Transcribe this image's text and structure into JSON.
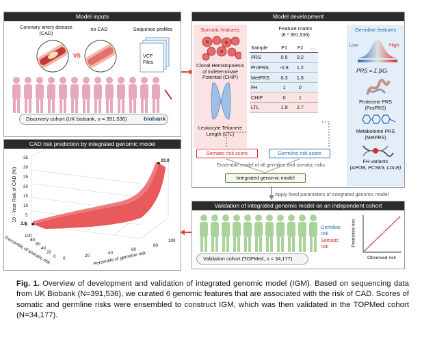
{
  "figure": {
    "model_inputs": {
      "title": "Model inputs",
      "cad_label": "Coronary artery disease\n(CAD)",
      "vs": "VS",
      "no_cad_label": "no CAD",
      "sequence_profiles": "Sequence profiles",
      "vcf_files": "VCF\nFiles",
      "discovery_prefix": "Discovery cohort (UK biobank, ",
      "discovery_n": "n",
      "discovery_suffix": " = 391,536)",
      "biobank_logo": "biobank"
    },
    "model_development": {
      "title": "Model development",
      "somatic_title": "Somatic features",
      "chip_label": "Clonal Hematopoiesis\nof Indeterminate\nPotential (CHIP)",
      "ltl_label": "Leukocyte Telomere\nLength (LTL)",
      "matrix_title": "Feature matrix",
      "matrix_dims": "(6 * 391,536)",
      "matrix_columns": [
        "Sample",
        "P1",
        "P2",
        "..."
      ],
      "matrix_rows": [
        {
          "label": "PRS",
          "p1": "0.5",
          "p2": "0.2",
          "group": "germline"
        },
        {
          "label": "ProPRS",
          "p1": "-0.8",
          "p2": "1.2",
          "group": "germline"
        },
        {
          "label": "MetPRS",
          "p1": "0.3",
          "p2": "1.6",
          "group": "germline"
        },
        {
          "label": "FH",
          "p1": "1",
          "p2": "0",
          "group": "germline"
        },
        {
          "label": "CHIP",
          "p1": "0",
          "p2": "1",
          "group": "somatic"
        },
        {
          "label": "LTL",
          "p1": "1.9",
          "p2": "2.7",
          "group": "somatic"
        }
      ],
      "germline_title": "Germline features",
      "low": "Low",
      "high": "High",
      "prs_formula_lhs": "PRS",
      "prs_formula_rhs": "= Σ βᵢGᵢ",
      "proteome_label": "Proteome PRS\n(ProPRS)",
      "metabolome_label": "Metabolome PRS\n(MetPRS)",
      "fh_label": "FH variants",
      "fh_genes": "(APOB, PCSK9, LDLR)",
      "somatic_risk": "Somatic risk score",
      "germline_risk": "Germline risk score",
      "ensemble_text": "Ensemble model of  all germline and somatic risks",
      "integrated_model": "Integrated genomic model",
      "apply_text": "Apply fixed parameters of integrated genomic model"
    },
    "prediction": {
      "title": "CAD risk prediction by integrated genomic model",
      "z_label": "10 - Year  Risk of CAD (%)",
      "x_label": "Percentile of germline risk",
      "y_label": "Percentile of somatic risk",
      "z_ticks": [
        "0",
        "5",
        "10",
        "15",
        "20",
        "25",
        "30",
        "35"
      ],
      "x_ticks": [
        "0",
        "20",
        "40",
        "60",
        "80",
        "100"
      ],
      "y_ticks": [
        "100",
        "80",
        "60",
        "40",
        "20",
        "0"
      ],
      "min_value": "3.8",
      "max_value": "33.0"
    },
    "validation": {
      "title": "Validation of integrated genomic model on an independent cohort",
      "germline_risk": "Germline\nrisk",
      "somatic_risk": "Somatic\nrisk",
      "cohort_prefix": "Validation cohort (TOPMed, ",
      "cohort_n": "n",
      "cohort_suffix": " = 34,177)",
      "y_axis": "Predicted risk",
      "x_axis": "Observed risk"
    },
    "caption": {
      "label": "Fig. 1.",
      "text": " Overview of development and validation of integrated genomic model (IGM). Based on sequencing data from UK Biobank (N=391,536), we curated 6 genomic features that are associated with the risk of CAD. Scores of somatic and germline risks were ensembled to construct IGM, which was then validated in the TOPMed cohort (N=34,177)."
    },
    "colors": {
      "somatic": "#d42a2a",
      "germline": "#2a67b5",
      "header": "#2b2b2b",
      "somatic_bg": "#fbe3e3",
      "germline_bg": "#e3eef9"
    }
  }
}
